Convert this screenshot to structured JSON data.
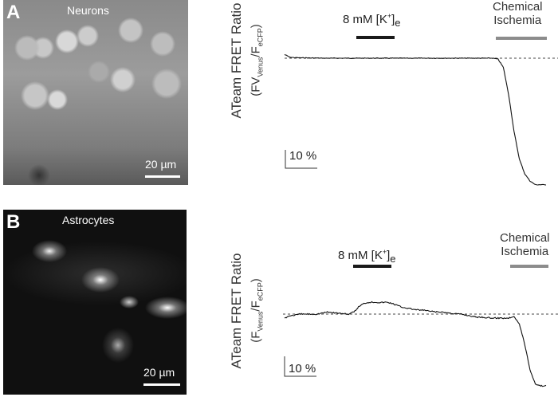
{
  "panels": [
    {
      "letter": "A",
      "image_title": "Neurons",
      "scale_bar": "20 µm",
      "ylabel_main": "ATeam FRET Ratio",
      "ylabel_sub": {
        "open": "(FV",
        "sub1": "Venus",
        "mid": "/F",
        "sub2": "eCFP",
        "close": ")"
      },
      "stim1": {
        "text": "8 mM [K",
        "sup": "+",
        "close": "]",
        "sub": "e",
        "bar_color": "#1a1a1a"
      },
      "stim2": {
        "line1": "Chemical",
        "line2": "Ischemia",
        "bar_color": "#8c8c8c"
      },
      "y_scale_label": "10 %"
    },
    {
      "letter": "B",
      "image_title": "Astrocytes",
      "scale_bar": "20 µm",
      "ylabel_main": "ATeam FRET Ratio",
      "ylabel_sub": {
        "open": "(F",
        "sub1": "Venus",
        "mid": "/F",
        "sub2": "eCFP",
        "close": ")"
      },
      "stim1": {
        "text": "8 mM [K",
        "sup": "+",
        "close": "]",
        "sub": "e",
        "bar_color": "#1a1a1a"
      },
      "stim2": {
        "line1": "Chemical",
        "line2": "Ischemia",
        "bar_color": "#8c8c8c"
      },
      "y_scale_label": "10 %"
    }
  ],
  "chart_data": [
    {
      "type": "line",
      "ylabel": "ATeam FRET Ratio (FVVenus/FeCFP)",
      "scale_bar_y": 10,
      "baseline": 0,
      "baseline_style": "dashed",
      "grid": false,
      "values": [
        2,
        0.5,
        0.3,
        0.2,
        0.2,
        0.1,
        0.1,
        0,
        0,
        0,
        0,
        0,
        0,
        0,
        0,
        0,
        0,
        0,
        0,
        0,
        0,
        0,
        0,
        0,
        0,
        0,
        0,
        0,
        0,
        0,
        0,
        0,
        0,
        0,
        0,
        0,
        0,
        0,
        0,
        0,
        -0.5,
        -5,
        -20,
        -40,
        -55,
        -63,
        -67,
        -69,
        -69,
        -69
      ]
    },
    {
      "type": "line",
      "ylabel": "ATeam FRET Ratio (FVenus/FeCFP)",
      "scale_bar_y": 10,
      "baseline": 0,
      "baseline_style": "dashed",
      "grid": false,
      "values": [
        -2,
        -0.8,
        -0.5,
        0,
        0,
        0,
        0,
        0.5,
        1,
        0.8,
        0.5,
        0.2,
        0,
        1,
        4,
        5.5,
        6,
        6,
        5.8,
        6,
        5.5,
        4.5,
        3.5,
        3,
        2.5,
        2,
        2,
        1.5,
        1.2,
        1,
        0.8,
        0.5,
        0.2,
        0,
        -0.5,
        -1,
        -1.5,
        -1.5,
        -1.8,
        -2,
        -2,
        -2,
        -2,
        -1,
        -5,
        -15,
        -28,
        -35,
        -36,
        -36
      ]
    }
  ]
}
